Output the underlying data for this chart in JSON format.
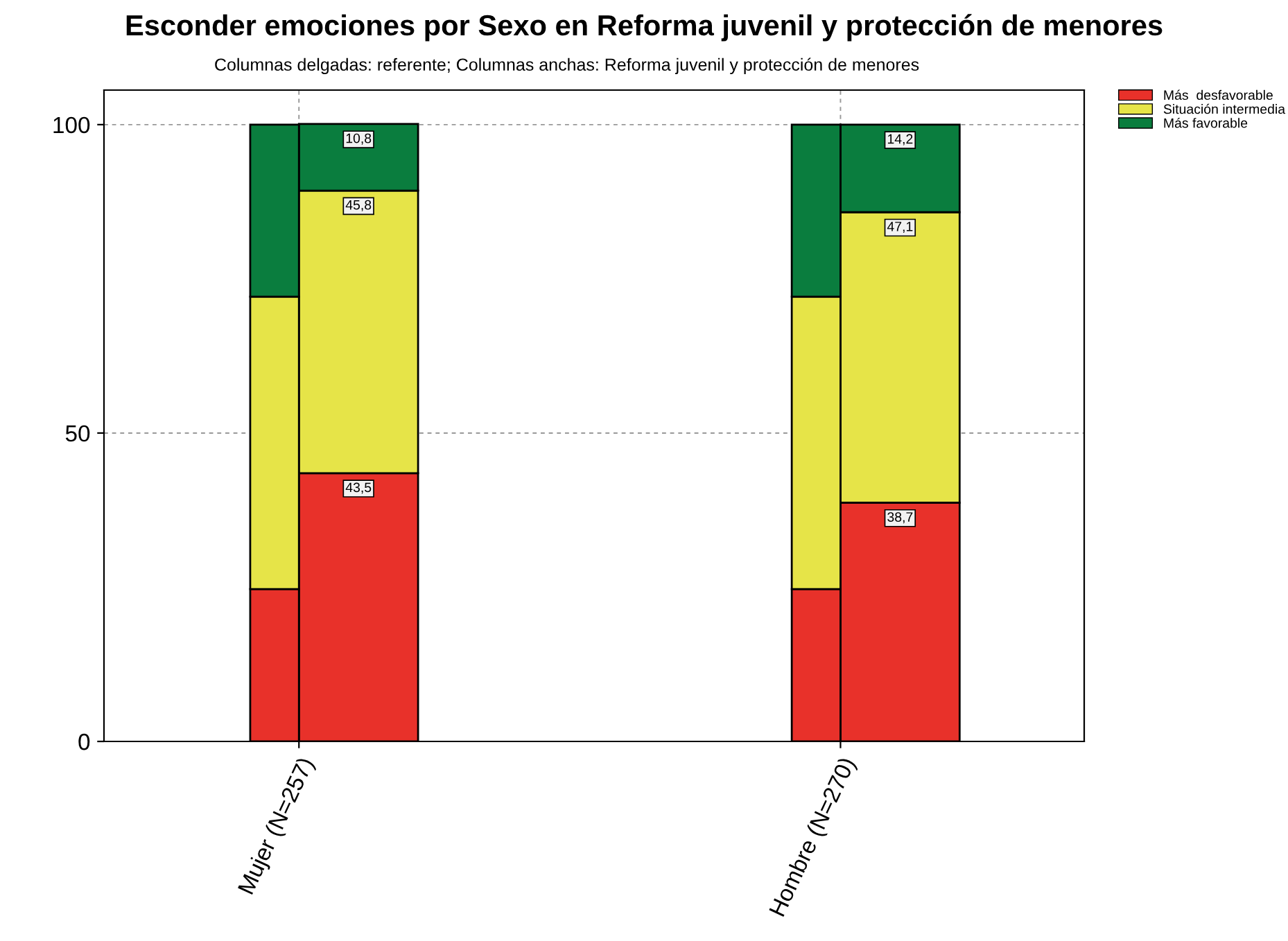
{
  "chart_data": {
    "type": "bar",
    "title": "Esconder emociones por Sexo en Reforma juvenil y protección de menores",
    "subtitle": "Columnas delgadas: referente; Columnas anchas: Reforma juvenil y protección de menores",
    "categories": [
      "Mujer (N=257)",
      "Hombre (N=270)"
    ],
    "series": [
      {
        "name": "Más  desfavorable",
        "color": "#e8312a",
        "values": [
          43.5,
          38.7
        ],
        "base": [
          0,
          0
        ],
        "value_labels": [
          "43,5",
          "38,7"
        ]
      },
      {
        "name": "Situación intermedia",
        "color": "#e6e448",
        "values": [
          45.8,
          47.1
        ],
        "base": [
          43.5,
          38.7
        ],
        "value_labels": [
          "45,8",
          "47,1"
        ]
      },
      {
        "name": "Más favorable",
        "color": "#0a7d3e",
        "values": [
          10.8,
          14.2
        ],
        "base": [
          89.3,
          85.8
        ],
        "value_labels": [
          "10,8",
          "14,2"
        ]
      },
      {
        "color": "#e8312a",
        "values": [
          24.7,
          24.7
        ],
        "base": [
          0,
          0
        ]
      },
      {
        "color": "#e6e448",
        "values": [
          47.4,
          47.4
        ],
        "base": [
          24.7,
          24.7
        ]
      },
      {
        "color": "#0a7d3e",
        "values": [
          27.9,
          27.9
        ],
        "base": [
          72.1,
          72.1
        ]
      }
    ],
    "ylim": [
      0,
      105.6
    ],
    "yticks": [
      0,
      50,
      100
    ],
    "grid": true,
    "legend": "top right"
  }
}
